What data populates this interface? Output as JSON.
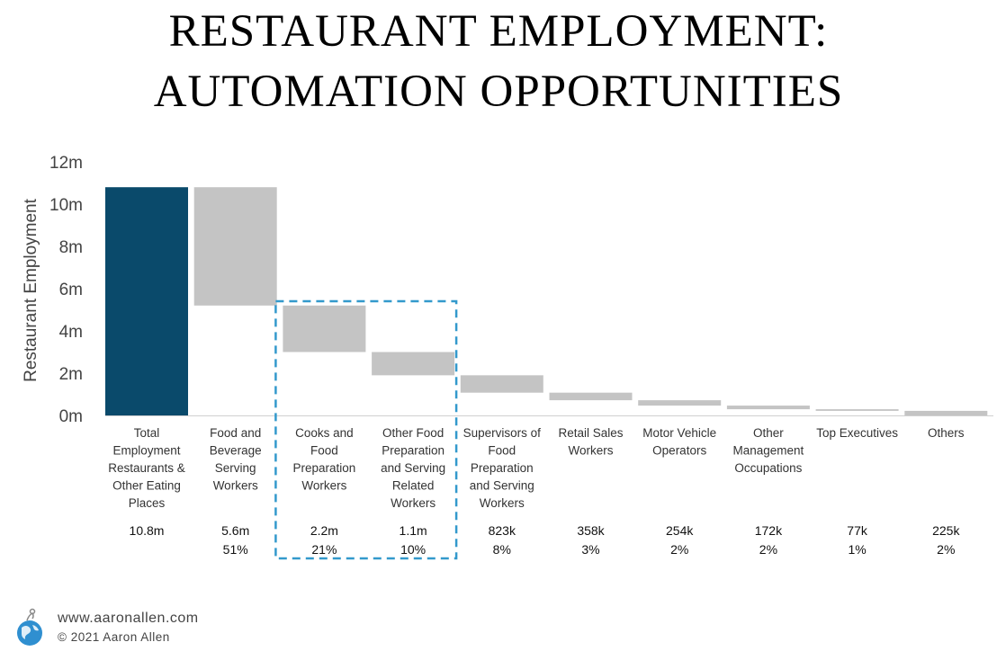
{
  "title": {
    "line1": "RESTAURANT EMPLOYMENT:",
    "line2": "AUTOMATION OPPORTUNITIES"
  },
  "chart_data": {
    "type": "waterfall",
    "ylabel": "Restaurant Employment",
    "ylim": [
      0,
      12000000
    ],
    "yticks": [
      {
        "value": 0,
        "label": "0m"
      },
      {
        "value": 2000000,
        "label": "2m"
      },
      {
        "value": 4000000,
        "label": "4m"
      },
      {
        "value": 6000000,
        "label": "6m"
      },
      {
        "value": 8000000,
        "label": "8m"
      },
      {
        "value": 10000000,
        "label": "10m"
      },
      {
        "value": 12000000,
        "label": "12m"
      }
    ],
    "grid": false,
    "colors": {
      "total": "#0a4a6b",
      "segment": "#c4c4c4",
      "highlight": "#3399cc"
    },
    "highlight_categories": [
      2,
      3
    ],
    "categories": [
      {
        "label": [
          "Total",
          "Employment",
          "Restaurants &",
          "Other Eating",
          "Places"
        ],
        "value": 10800000,
        "value_label": "10.8m",
        "pct_label": "",
        "kind": "total"
      },
      {
        "label": [
          "Food and",
          "Beverage",
          "Serving",
          "Workers"
        ],
        "value": 5600000,
        "value_label": "5.6m",
        "pct_label": "51%",
        "kind": "segment"
      },
      {
        "label": [
          "Cooks and",
          "Food",
          "Preparation",
          "Workers"
        ],
        "value": 2200000,
        "value_label": "2.2m",
        "pct_label": "21%",
        "kind": "segment"
      },
      {
        "label": [
          "Other Food",
          "Preparation",
          "and Serving",
          "Related",
          "Workers"
        ],
        "value": 1100000,
        "value_label": "1.1m",
        "pct_label": "10%",
        "kind": "segment"
      },
      {
        "label": [
          "Supervisors of",
          "Food",
          "Preparation",
          "and Serving",
          "Workers"
        ],
        "value": 823000,
        "value_label": "823k",
        "pct_label": "8%",
        "kind": "segment"
      },
      {
        "label": [
          "Retail Sales",
          "Workers"
        ],
        "value": 358000,
        "value_label": "358k",
        "pct_label": "3%",
        "kind": "segment"
      },
      {
        "label": [
          "Motor Vehicle",
          "Operators"
        ],
        "value": 254000,
        "value_label": "254k",
        "pct_label": "2%",
        "kind": "segment"
      },
      {
        "label": [
          "Other",
          "Management",
          "Occupations"
        ],
        "value": 172000,
        "value_label": "172k",
        "pct_label": "2%",
        "kind": "segment"
      },
      {
        "label": [
          "Top Executives"
        ],
        "value": 77000,
        "value_label": "77k",
        "pct_label": "1%",
        "kind": "segment"
      },
      {
        "label": [
          "Others"
        ],
        "value": 225000,
        "value_label": "225k",
        "pct_label": "2%",
        "kind": "segment"
      }
    ]
  },
  "footer": {
    "url": "www.aaronallen.com",
    "copyright": "© 2021 Aaron Allen"
  },
  "icons": {
    "logo": "globe-logo-icon"
  }
}
